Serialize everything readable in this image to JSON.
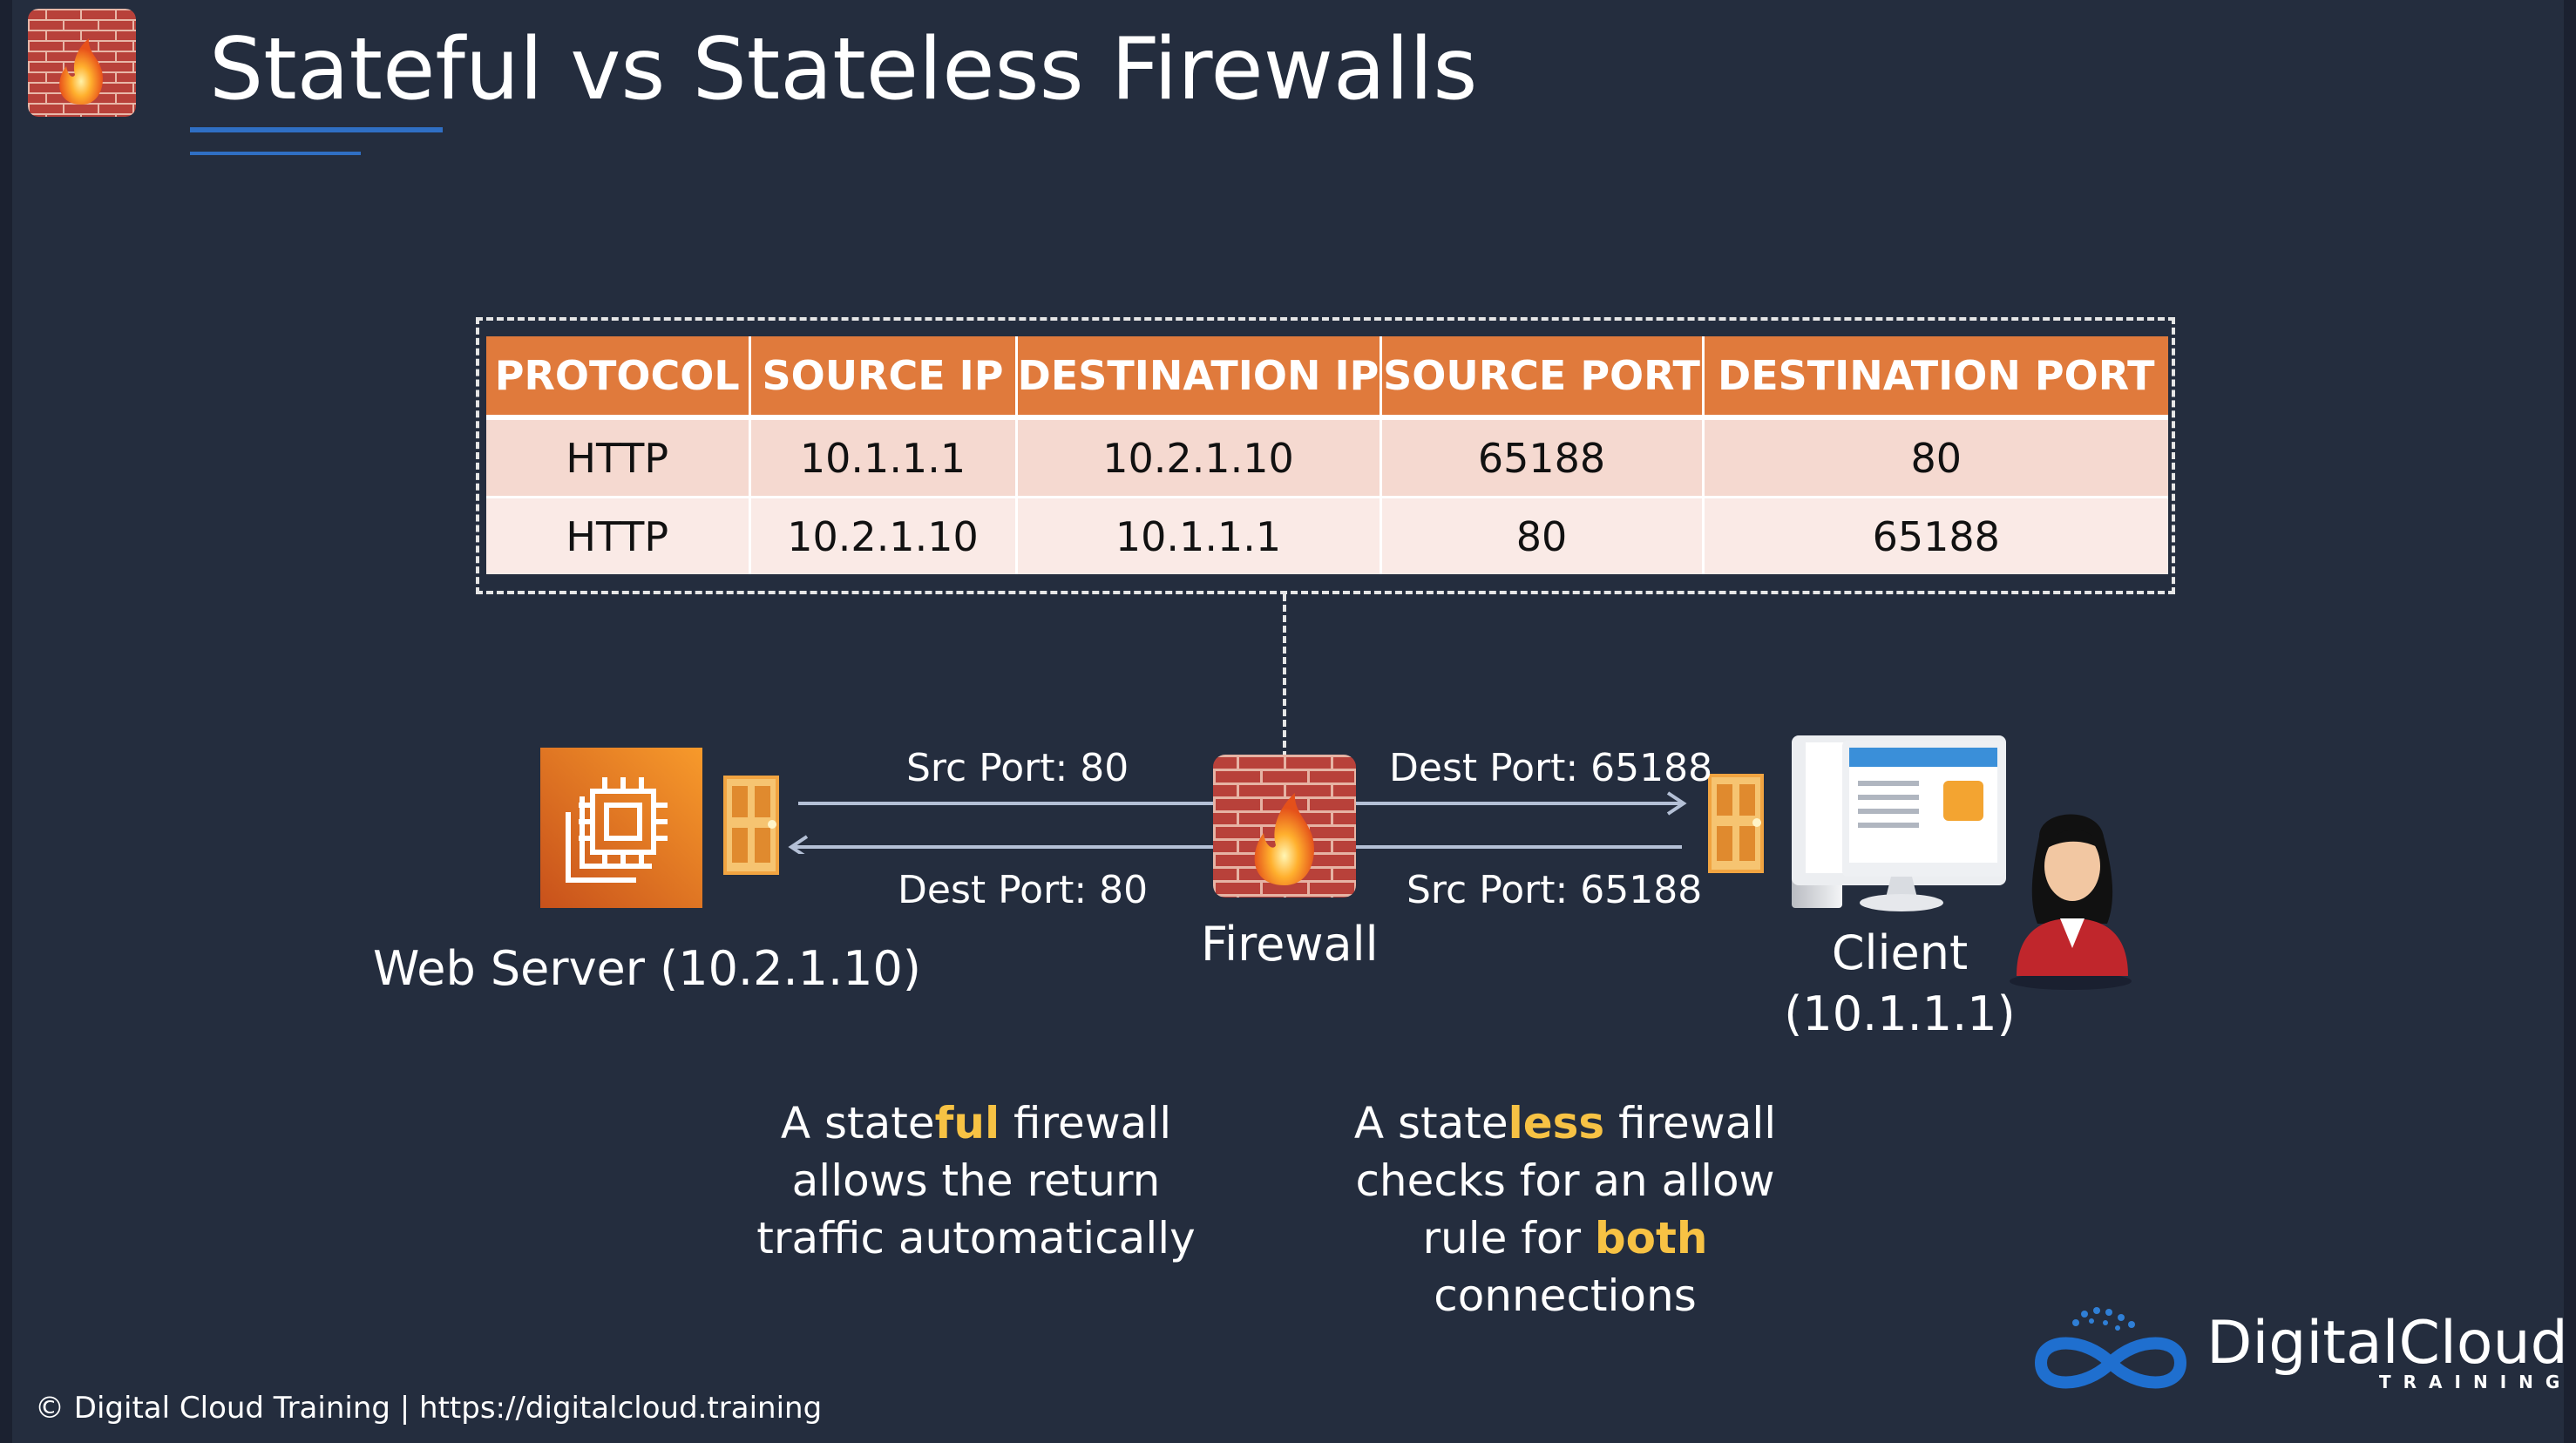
{
  "slide": {
    "title": "Stateful vs Stateless Firewalls"
  },
  "table": {
    "headers": [
      "PROTOCOL",
      "SOURCE IP",
      "DESTINATION IP",
      "SOURCE PORT",
      "DESTINATION PORT"
    ],
    "rows": [
      [
        "HTTP",
        "10.1.1.1",
        "10.2.1.10",
        "65188",
        "80"
      ],
      [
        "HTTP",
        "10.2.1.10",
        "10.1.1.1",
        "80",
        "65188"
      ]
    ]
  },
  "diagram": {
    "left_top_label": "Src Port: 80",
    "left_bottom_label": "Dest Port: 80",
    "right_top_label": "Dest Port: 65188",
    "right_bottom_label": "Src Port: 65188",
    "firewall_label": "Firewall",
    "web_server_label": "Web Server (10.2.1.10)",
    "client_label_line1": "Client",
    "client_label_line2": "(10.1.1.1)"
  },
  "stateful_text": {
    "pre": "A state",
    "highlight": "ful",
    "post": " firewall",
    "line2": "allows the return",
    "line3": "traffic automatically"
  },
  "stateless_text": {
    "pre": "A state",
    "highlight": "less",
    "post": " firewall",
    "line2": "checks for an allow",
    "line3_pre": "rule for ",
    "line3_highlight": "both",
    "line4": "connections"
  },
  "footer": {
    "copyright": "© Digital Cloud Training  |  https://digitalcloud.training"
  },
  "brand": {
    "name": "DigitalCloud",
    "sub": "TRAINING"
  },
  "colors": {
    "background": "#242d3e",
    "table_header": "#e07a3c",
    "highlight": "#f7c244",
    "accent_line": "#2f6fc4"
  },
  "icons": {
    "slide_logo": "firewall-brick-icon",
    "web_server": "ec2-instance-icon",
    "firewall": "firewall-brick-icon",
    "door_left": "door-icon",
    "door_right": "door-icon",
    "client_computer": "desktop-computer-icon",
    "client_user": "user-avatar-icon",
    "brand_logo": "infinity-cloud-icon"
  }
}
